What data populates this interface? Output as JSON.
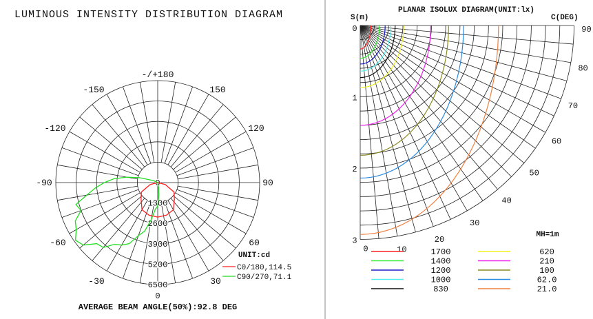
{
  "chart_data": [
    {
      "type": "polar",
      "title": "LUMINOUS INTENSITY DISTRIBUTION DIAGRAM",
      "unit_label": "UNIT:cd",
      "angle_labels": [
        "-/+180",
        "-150",
        "150",
        "-120",
        "120",
        "-90",
        "90",
        "-60",
        "60",
        "-30",
        "30",
        "0"
      ],
      "radial_ticks": [
        "0",
        "1300",
        "2600",
        "3900",
        "5200",
        "6500"
      ],
      "radial_max": 6500,
      "footer": "AVERAGE BEAM ANGLE(50%):92.8 DEG",
      "series": [
        {
          "name": "C0/180,114.5",
          "color": "#ff2020",
          "angles": [
            -90,
            -75,
            -60,
            -45,
            -30,
            -15,
            0,
            15,
            30,
            45,
            60,
            75,
            90
          ],
          "values": [
            0,
            500,
            1200,
            1500,
            2000,
            2150,
            2200,
            2150,
            2000,
            1500,
            1200,
            500,
            0
          ]
        },
        {
          "name": "C90/270,71.1",
          "color": "#22dd22",
          "angles": [
            -120,
            -115,
            -105,
            -100,
            -95,
            -90,
            -85,
            -80,
            -75,
            -70,
            -65,
            -60,
            -55,
            -50,
            -45,
            -40,
            -35,
            -30,
            -25,
            -20,
            -15,
            -10,
            -5,
            0,
            5,
            10,
            20
          ],
          "values": [
            0,
            300,
            1200,
            2000,
            2800,
            3400,
            4000,
            4600,
            5400,
            5200,
            5800,
            6000,
            6400,
            6200,
            5500,
            5400,
            4800,
            4600,
            4300,
            3600,
            3200,
            2400,
            1700,
            1500,
            800,
            300,
            0
          ]
        }
      ]
    },
    {
      "type": "isolux",
      "title": "PLANAR ISOLUX DIAGRAM(UNIT:lx)",
      "y_axis_label": "S(m)",
      "angle_axis_label": "C(DEG)",
      "s_ticks": [
        "0",
        "1",
        "2",
        "3"
      ],
      "angle_ticks": [
        "0",
        "10",
        "20",
        "30",
        "40",
        "50",
        "60",
        "70",
        "80",
        "90"
      ],
      "s_max": 3,
      "mounting_height": "MH=1m",
      "contours": [
        {
          "value": "1700",
          "color": "#ff2020",
          "extent_c90_m": 0.15,
          "extent_c0_m": 0.33
        },
        {
          "value": "1400",
          "color": "#33ee33",
          "extent_c90_m": 0.27,
          "extent_c0_m": 0.46
        },
        {
          "value": "1200",
          "color": "#1a1acc",
          "extent_c90_m": 0.35,
          "extent_c0_m": 0.54
        },
        {
          "value": "1000",
          "color": "#55eeee",
          "extent_c90_m": 0.43,
          "extent_c0_m": 0.64
        },
        {
          "value": "830",
          "color": "#111111",
          "extent_c90_m": 0.49,
          "extent_c0_m": 0.73
        },
        {
          "value": "620",
          "color": "#f0f020",
          "extent_c90_m": 0.61,
          "extent_c0_m": 0.87
        },
        {
          "value": "210",
          "color": "#ee22ee",
          "extent_c90_m": 0.99,
          "extent_c0_m": 1.4
        },
        {
          "value": "100",
          "color": "#8a8a20",
          "extent_c90_m": 1.24,
          "extent_c0_m": 1.82
        },
        {
          "value": "62.0",
          "color": "#2a8ae0",
          "extent_c90_m": 1.45,
          "extent_c0_m": 2.14
        },
        {
          "value": "21.0",
          "color": "#f08040",
          "extent_c90_m": 1.94,
          "extent_c0_m": 2.93
        }
      ]
    }
  ]
}
